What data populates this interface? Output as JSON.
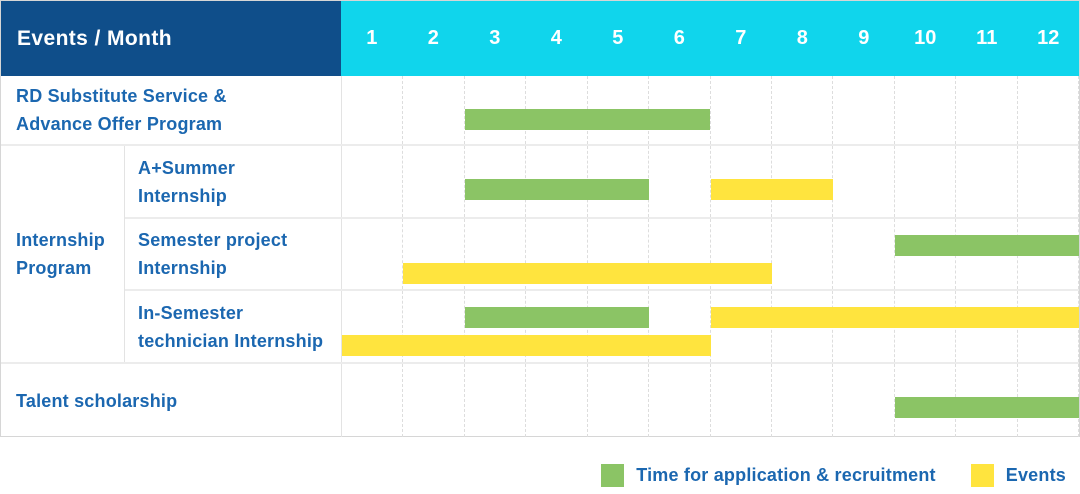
{
  "header": {
    "title": "Events / Month"
  },
  "months": [
    "1",
    "2",
    "3",
    "4",
    "5",
    "6",
    "7",
    "8",
    "9",
    "10",
    "11",
    "12"
  ],
  "colors": {
    "header_bg": "#0F4E8A",
    "month_header_bg": "#10D5EC",
    "header_text": "#FFFFFF",
    "label_text": "#1B67B0",
    "recruitment_green": "#8BC465",
    "events_yellow": "#FFE43E",
    "grid_line_horizontal": "#ECECEC",
    "grid_line_vertical": "#DDDDDD"
  },
  "chart_data": {
    "type": "gantt",
    "title": "Events / Month",
    "x_axis": {
      "label": "Month",
      "ticks": [
        1,
        2,
        3,
        4,
        5,
        6,
        7,
        8,
        9,
        10,
        11,
        12
      ],
      "range": [
        1,
        12
      ]
    },
    "grid": true,
    "legend_position": "bottom-right",
    "series_legend": [
      {
        "name": "Time for application & recruitment",
        "color": "#8BC465"
      },
      {
        "name": "Events",
        "color": "#FFE43E"
      }
    ],
    "group_label": "Internship Program",
    "group_label_lines": [
      "Internship",
      "Program"
    ],
    "rows": [
      {
        "group": "",
        "label": "RD Substitute Service & Advance Offer Program",
        "label_lines": [
          "RD Substitute Service &",
          "Advance Offer Program"
        ],
        "bars": [
          {
            "series": "Time for application & recruitment",
            "start_month": 3,
            "end_month": 6,
            "track": "center"
          }
        ]
      },
      {
        "group": "Internship Program",
        "label": "A+Summer Internship",
        "label_lines": [
          "A+Summer",
          "Internship"
        ],
        "bars": [
          {
            "series": "Time for application & recruitment",
            "start_month": 3,
            "end_month": 5,
            "track": "center"
          },
          {
            "series": "Events",
            "start_month": 7,
            "end_month": 8,
            "track": "center"
          }
        ]
      },
      {
        "group": "Internship Program",
        "label": "Semester project Internship",
        "label_lines": [
          "Semester project",
          "Internship"
        ],
        "bars": [
          {
            "series": "Time for application & recruitment",
            "start_month": 10,
            "end_month": 12,
            "track": "top"
          },
          {
            "series": "Events",
            "start_month": 2,
            "end_month": 7,
            "track": "bottom"
          }
        ]
      },
      {
        "group": "Internship Program",
        "label": "In-Semester technician Internship",
        "label_lines": [
          "In-Semester",
          "technician Internship"
        ],
        "bars": [
          {
            "series": "Time for application & recruitment",
            "start_month": 3,
            "end_month": 5,
            "track": "top"
          },
          {
            "series": "Events",
            "start_month": 7,
            "end_month": 12,
            "track": "top"
          },
          {
            "series": "Events",
            "start_month": 1,
            "end_month": 6,
            "track": "bottom"
          }
        ]
      },
      {
        "group": "",
        "label": "Talent scholarship",
        "label_lines": [
          "Talent scholarship"
        ],
        "bars": [
          {
            "series": "Time for application & recruitment",
            "start_month": 10,
            "end_month": 12,
            "track": "center"
          }
        ]
      }
    ]
  },
  "legend": {
    "items": [
      {
        "label": "Time for application & recruitment",
        "series": "recruitment"
      },
      {
        "label": "Events",
        "series": "events"
      }
    ]
  }
}
